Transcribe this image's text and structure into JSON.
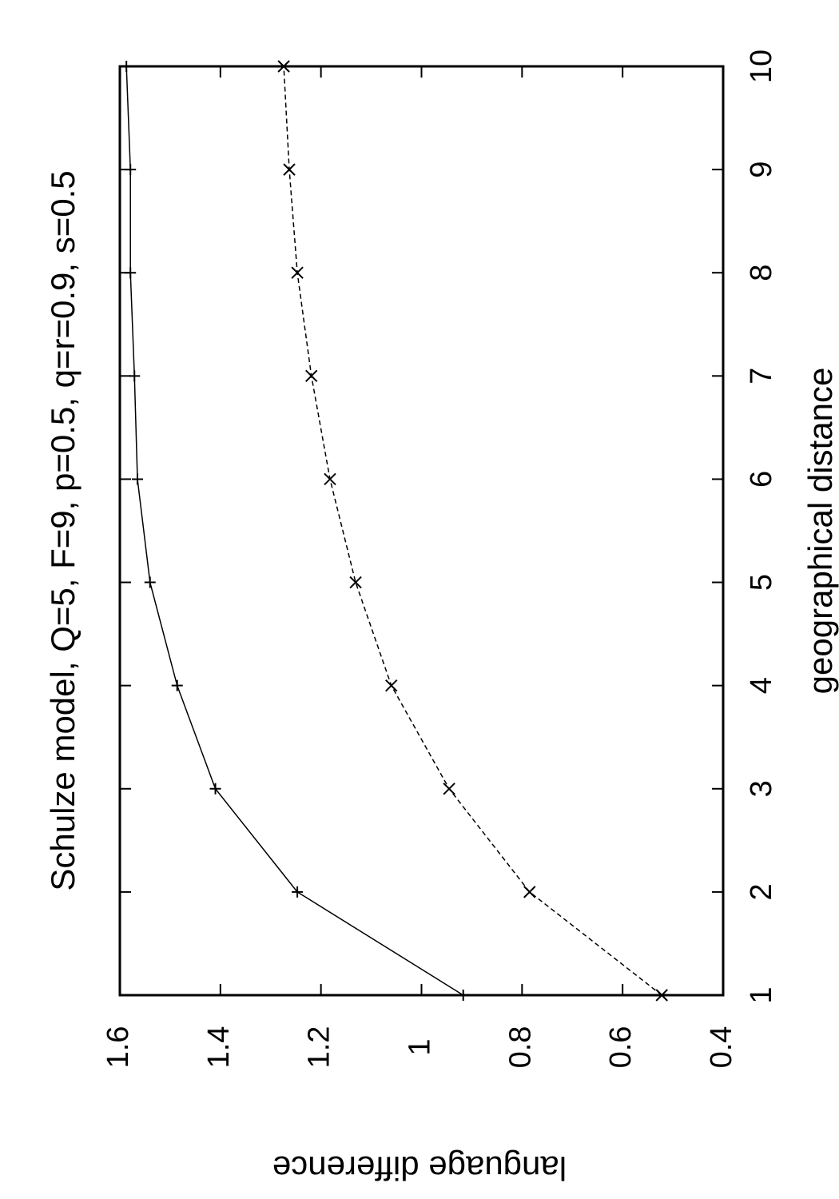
{
  "chart_data": {
    "type": "line",
    "title": "Schulze model, Q=5, F=9, p=0.5, q=r=0.9, s=0.5",
    "xlabel": "geographical distance",
    "ylabel": "language difference",
    "x": [
      1,
      2,
      3,
      4,
      5,
      6,
      7,
      8,
      9,
      10
    ],
    "series": [
      {
        "color": "#000000",
        "style": "solid",
        "marker": "plus",
        "values": [
          0.917,
          1.247,
          1.41,
          1.486,
          1.54,
          1.565,
          1.571,
          1.579,
          1.579,
          1.587
        ]
      },
      {
        "color": "#000000",
        "style": "dashed",
        "marker": "cross",
        "values": [
          0.522,
          0.785,
          0.945,
          1.06,
          1.131,
          1.182,
          1.219,
          1.247,
          1.263,
          1.274
        ]
      }
    ],
    "xlim": [
      1,
      10
    ],
    "xticks": [
      1,
      2,
      3,
      4,
      5,
      6,
      7,
      8,
      9,
      10
    ],
    "ylim": [
      0.4,
      1.6
    ],
    "yticks": [
      0.4,
      0.6,
      0.8,
      1,
      1.2,
      1.4,
      1.6
    ],
    "grid": false
  }
}
